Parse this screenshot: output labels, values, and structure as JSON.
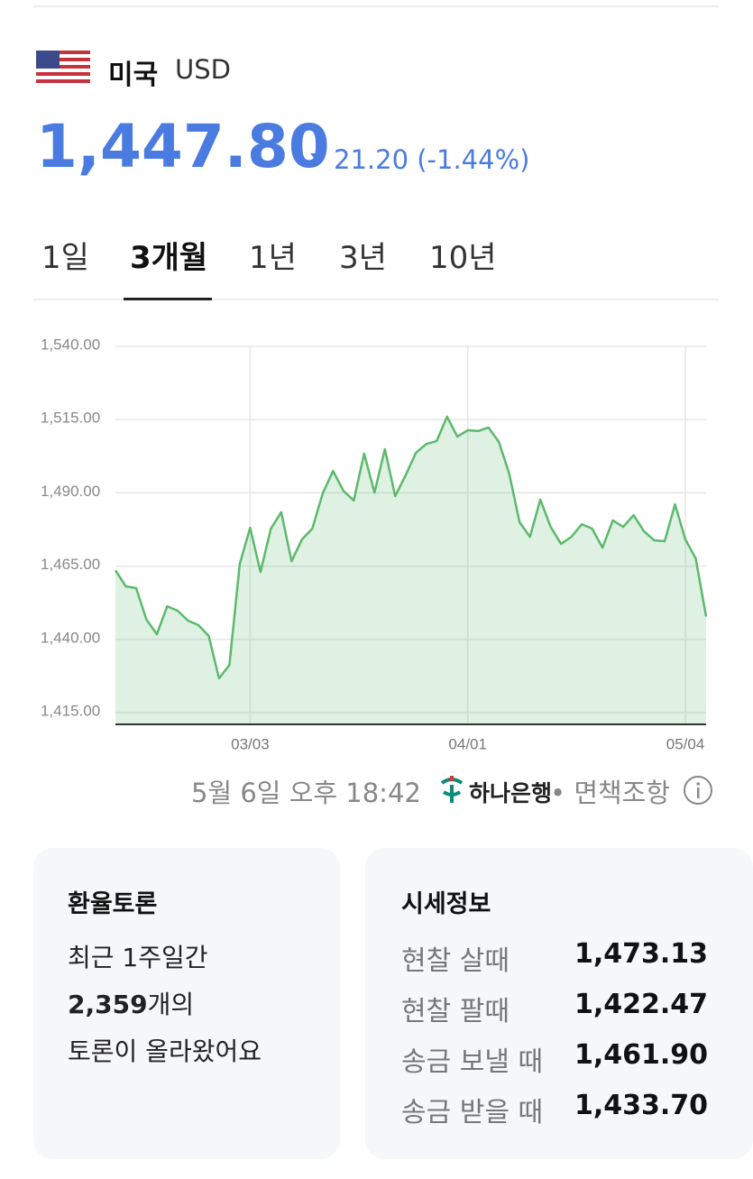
{
  "header": {
    "country": "미국",
    "currency": "USD",
    "price": "1,447.80",
    "change": "21.20 (-1.44%)"
  },
  "tabs": [
    "1일",
    "3개월",
    "1년",
    "3년",
    "10년"
  ],
  "chart_data": {
    "type": "line",
    "categories": [
      null,
      null,
      null,
      null,
      null,
      null,
      null,
      null,
      null,
      null,
      null,
      null,
      null,
      "03/03",
      null,
      null,
      null,
      null,
      null,
      null,
      null,
      null,
      null,
      null,
      null,
      null,
      null,
      null,
      null,
      null,
      null,
      null,
      null,
      null,
      "04/01",
      null,
      null,
      null,
      null,
      null,
      null,
      null,
      null,
      null,
      null,
      null,
      null,
      null,
      null,
      null,
      null,
      null,
      null,
      null,
      null,
      "05/04",
      null,
      null
    ],
    "series": [
      {
        "color": "#5cb96c",
        "values": [
          1463.6,
          1458.1,
          1457.5,
          1446.7,
          1441.8,
          1451.3,
          1449.8,
          1446.4,
          1444.9,
          1441.2,
          1426.7,
          1431.3,
          1465.8,
          1478.1,
          1463.0,
          1477.8,
          1483.4,
          1466.7,
          1474.1,
          1477.8,
          1489.8,
          1497.5,
          1490.7,
          1487.4,
          1503.4,
          1490.1,
          1504.9,
          1488.9,
          1496.0,
          1503.7,
          1506.7,
          1507.7,
          1516.0,
          1509.2,
          1511.4,
          1511.1,
          1512.3,
          1507.4,
          1496.6,
          1480.0,
          1475.0,
          1487.7,
          1478.4,
          1472.6,
          1475.0,
          1479.3,
          1477.8,
          1471.3,
          1480.6,
          1478.4,
          1482.4,
          1476.9,
          1473.8,
          1473.5,
          1486.1,
          1474.1,
          1467.6,
          1447.8
        ]
      }
    ],
    "ylim": [
      1411,
      1540
    ],
    "yticks": [
      {
        "value": 1415,
        "label": "1,415.00"
      },
      {
        "value": 1440,
        "label": "1,440.00"
      },
      {
        "value": 1465,
        "label": "1,465.00"
      },
      {
        "value": 1490,
        "label": "1,490.00"
      },
      {
        "value": 1515,
        "label": "1,515.00"
      },
      {
        "value": 1540,
        "label": "1,540.00"
      }
    ],
    "grid": true
  },
  "footer": {
    "timestamp": "5월 6일 오후 18:42",
    "bank": "하나은행",
    "disclaimer": "• 면책조항"
  },
  "discussion": {
    "title": "환율토론",
    "line1": "최근 1주일간",
    "count": "2,359",
    "count_suffix": "개의",
    "line3": "토론이 올라왔어요"
  },
  "quotes": {
    "title": "시세정보",
    "rows": [
      [
        "현찰 살때",
        "1,473.13"
      ],
      [
        "현찰 팔때",
        "1,422.47"
      ],
      [
        "송금 보낼 때",
        "1,461.90"
      ],
      [
        "송금 받을 때",
        "1,433.70"
      ]
    ]
  }
}
